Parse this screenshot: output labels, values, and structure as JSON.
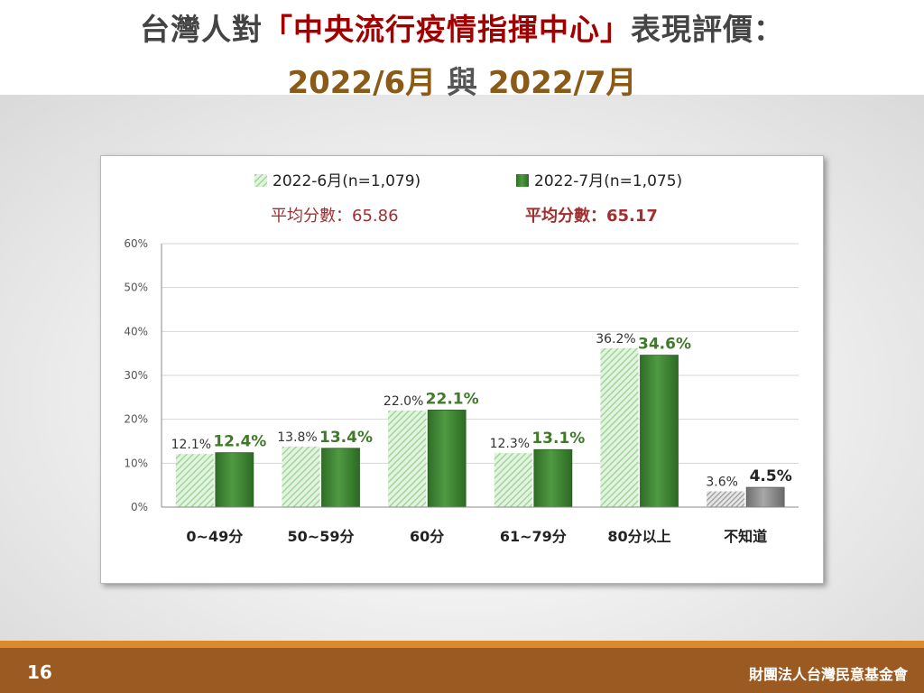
{
  "title": {
    "line1_prefix": "台灣人對",
    "line1_highlight": "「中央流行疫情指揮中心」",
    "line1_suffix": "表現評價：",
    "line2_a": "2022/6月",
    "line2_joiner": "與",
    "line2_b": "2022/7月"
  },
  "footer": {
    "page_number": "16",
    "organization": "財團法人台灣民意基金會"
  },
  "colors": {
    "june_hatch": "#9fd79a",
    "july_bar": "#3f8a35",
    "july_label": "#3f7a2a",
    "unknown_hatch": "#a0a0a0",
    "unknown_bar": "#8a8a8a",
    "average_text": "#a03030",
    "footer_bar": "#9b5a22",
    "accent_red": "#a00000"
  },
  "chart_data": {
    "type": "bar",
    "categories": [
      "0~49分",
      "50~59分",
      "60分",
      "61~79分",
      "80分以上",
      "不知道"
    ],
    "series": [
      {
        "name": "2022-6月(n=1,079)",
        "values": [
          12.1,
          13.8,
          22.0,
          12.3,
          36.2,
          3.6
        ],
        "labels": [
          "12.1%",
          "13.8%",
          "22.0%",
          "12.3%",
          "36.2%",
          "3.6%"
        ],
        "average_label": "平均分數：65.86"
      },
      {
        "name": "2022-7月(n=1,075)",
        "values": [
          12.4,
          13.4,
          22.1,
          13.1,
          34.6,
          4.5
        ],
        "labels": [
          "12.4%",
          "13.4%",
          "22.1%",
          "13.1%",
          "34.6%",
          "4.5%"
        ],
        "average_label": "平均分數：65.17"
      }
    ],
    "yticks": [
      "0%",
      "10%",
      "20%",
      "30%",
      "40%",
      "50%",
      "60%"
    ],
    "ylim": [
      0,
      60
    ],
    "grid": true,
    "legend_position": "top"
  }
}
